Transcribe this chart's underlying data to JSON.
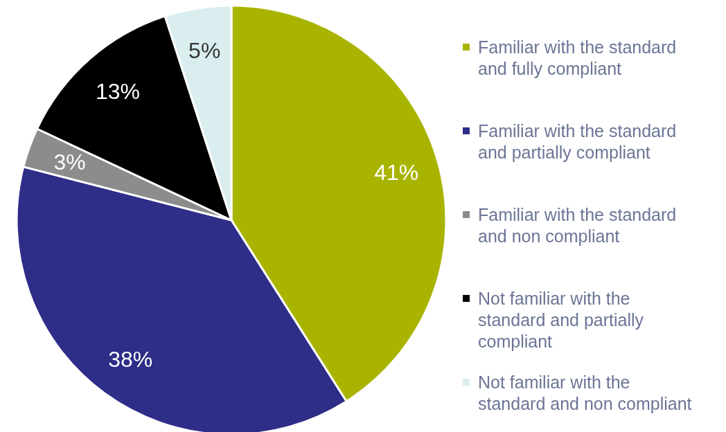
{
  "chart_data": {
    "type": "pie",
    "categories": [
      "Familiar with the standard\nand fully compliant",
      "Familiar with the standard\nand partially compliant",
      "Familiar with the standard\nand non compliant",
      "Not familiar with the\nstandard and partially\ncompliant",
      "Not familiar with the\nstandard and non compliant"
    ],
    "values": [
      41,
      38,
      3,
      13,
      5
    ],
    "value_labels": [
      "41%",
      "38%",
      "3%",
      "13%",
      "5%"
    ],
    "colors": [
      "#a9b400",
      "#2e2d88",
      "#8c8c8c",
      "#000000",
      "#daeef0"
    ],
    "legend": "right"
  }
}
